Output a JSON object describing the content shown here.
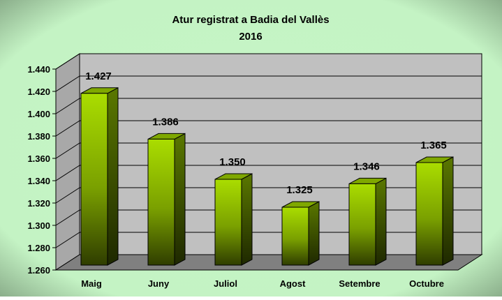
{
  "chart_data": {
    "type": "bar",
    "title": "Atur registrat a Badia del Vallès",
    "subtitle": "2016",
    "xlabel": "",
    "ylabel": "",
    "categories": [
      "Maig",
      "Juny",
      "Juliol",
      "Agost",
      "Setembre",
      "Octubre"
    ],
    "values": [
      1427,
      1386,
      1350,
      1325,
      1346,
      1365
    ],
    "data_labels": [
      "1.427",
      "1.386",
      "1.350",
      "1.325",
      "1.346",
      "1.365"
    ],
    "ylim": [
      1260,
      1440
    ],
    "yticks": [
      1260,
      1280,
      1300,
      1320,
      1340,
      1360,
      1380,
      1400,
      1420,
      1440
    ],
    "ytick_labels": [
      "1.260",
      "1.280",
      "1.300",
      "1.320",
      "1.340",
      "1.360",
      "1.380",
      "1.400",
      "1.420",
      "1.440"
    ],
    "grid": true,
    "legend": "none",
    "three_d": true,
    "colors": {
      "background": "#c6f5c6",
      "plot_wall": "#c0c0c0",
      "plot_floor": "#808080",
      "bar_front_top": "#aadd00",
      "bar_front_bottom": "#2f3d00",
      "bar_side": "#4a6200",
      "bar_top": "#7fa800",
      "text": "#000000"
    }
  }
}
